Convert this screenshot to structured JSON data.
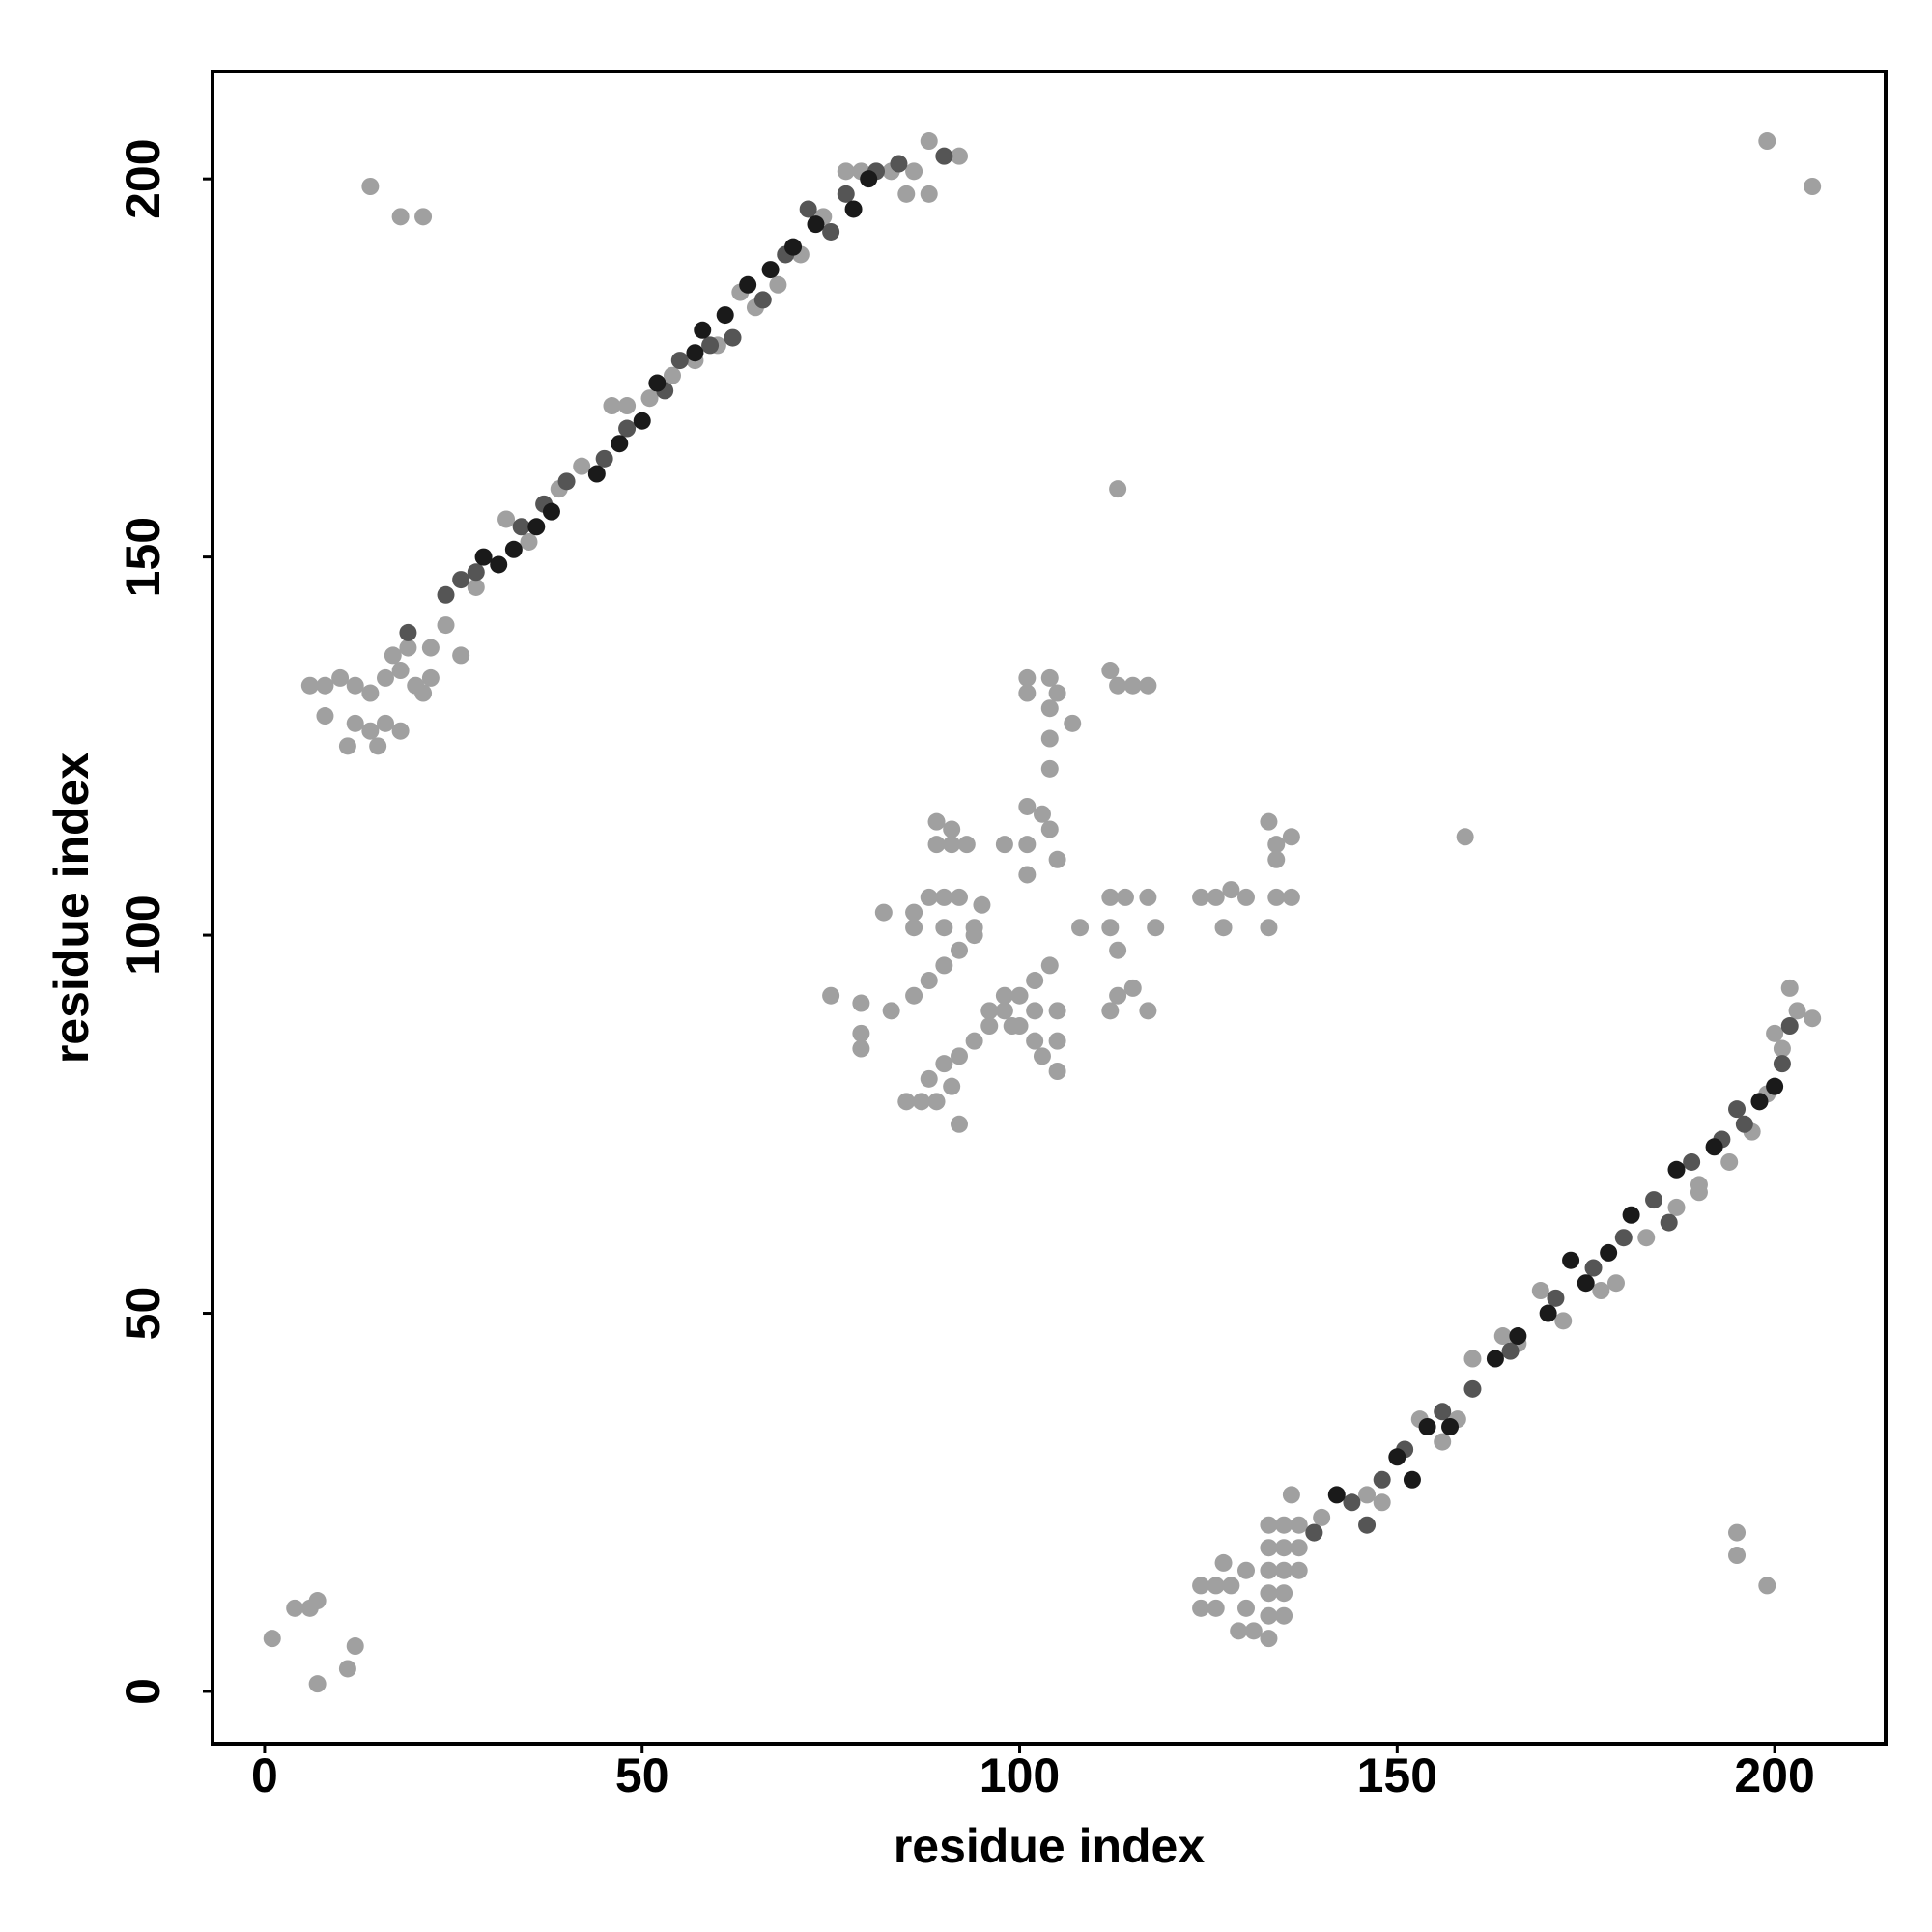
{
  "chart_data": {
    "type": "scatter",
    "x_label": "residue index",
    "y_label": "residue index",
    "xlim": [
      -6.9,
      214.7
    ],
    "ylim": [
      -6.9,
      214.2
    ],
    "xticks": [
      0,
      50,
      100,
      150,
      200
    ],
    "yticks": [
      0,
      50,
      100,
      150,
      200
    ],
    "series": [
      {
        "color": "#a0a0a0",
        "x": [
          6,
          8,
          10,
          12,
          14,
          16,
          18,
          20,
          22,
          8,
          12,
          14,
          16,
          11,
          15,
          18,
          21,
          17,
          19,
          22,
          26,
          24,
          28,
          32,
          35,
          39,
          42,
          46,
          48,
          51,
          54,
          57,
          60,
          63,
          65,
          68,
          71,
          74,
          77,
          79,
          83,
          86,
          88,
          92,
          85,
          88,
          14,
          18,
          21,
          113,
          199,
          205,
          159,
          195,
          195,
          199,
          1,
          4,
          6,
          7,
          12,
          11,
          7,
          75,
          79,
          79,
          79,
          83,
          86,
          88,
          90,
          92,
          94,
          82,
          86,
          88,
          90,
          92,
          95,
          86,
          90,
          94,
          89,
          91,
          93,
          89,
          91,
          85,
          87,
          89,
          91,
          92,
          88,
          90,
          92,
          94,
          96,
          98,
          100,
          102,
          100,
          102,
          102,
          103,
          104,
          105,
          105,
          105,
          99,
          98,
          96,
          101,
          101,
          104,
          104,
          104,
          104,
          103,
          104,
          101,
          101,
          101,
          107,
          105,
          105,
          98,
          108,
          112,
          113,
          115,
          117,
          112,
          114,
          117,
          118,
          112,
          113,
          113,
          112,
          115,
          117,
          124,
          126,
          128,
          130,
          127,
          133,
          134,
          136,
          133,
          134,
          136,
          134,
          133,
          135,
          137,
          133,
          135,
          137,
          133,
          135,
          137,
          133,
          135,
          133,
          135,
          133,
          129,
          131,
          124,
          126,
          128,
          124,
          126,
          130,
          127,
          130,
          139,
          136,
          140,
          146,
          148,
          153,
          156,
          158,
          160,
          164,
          166,
          169,
          172,
          177,
          179,
          183,
          187,
          190,
          194,
          197,
          199,
          201,
          203,
          205,
          202,
          200,
          190
        ],
        "values": [
          133,
          133,
          134,
          133,
          132,
          134,
          135,
          133,
          134,
          129,
          128,
          127,
          128,
          125,
          125,
          127,
          132,
          137,
          138,
          138,
          137,
          141,
          146,
          155,
          152,
          159,
          162,
          170,
          170,
          171,
          174,
          176,
          178,
          185,
          183,
          186,
          190,
          195,
          201,
          201,
          201,
          201,
          205,
          203,
          198,
          198,
          199,
          195,
          195,
          159,
          205,
          199,
          113,
          21,
          18,
          14,
          7,
          11,
          11,
          12,
          6,
          3,
          1,
          92,
          91,
          87,
          85,
          90,
          92,
          94,
          96,
          98,
          100,
          103,
          103,
          105,
          105,
          105,
          104,
          101,
          101,
          101,
          112,
          112,
          112,
          115,
          114,
          78,
          78,
          78,
          80,
          75,
          81,
          83,
          84,
          86,
          88,
          90,
          92,
          94,
          88,
          86,
          90,
          84,
          96,
          90,
          86,
          82,
          88,
          92,
          90,
          134,
          132,
          134,
          130,
          126,
          122,
          116,
          114,
          117,
          112,
          108,
          128,
          132,
          110,
          112,
          101,
          135,
          133,
          133,
          133,
          105,
          105,
          105,
          101,
          101,
          98,
          92,
          90,
          93,
          90,
          105,
          105,
          106,
          105,
          101,
          101,
          105,
          105,
          115,
          112,
          113,
          110,
          22,
          22,
          22,
          19,
          19,
          19,
          16,
          16,
          16,
          13,
          13,
          10,
          10,
          7,
          8,
          8,
          14,
          14,
          14,
          11,
          11,
          11,
          17,
          16,
          21,
          26,
          23,
          26,
          25,
          36,
          33,
          36,
          44,
          47,
          46,
          53,
          49,
          53,
          54,
          60,
          64,
          67,
          70,
          74,
          79,
          85,
          90,
          89,
          93,
          87,
          66
        ]
      },
      {
        "color": "#555555",
        "x": [
          19,
          24,
          26,
          28,
          34,
          37,
          40,
          45,
          48,
          53,
          55,
          59,
          62,
          66,
          69,
          72,
          75,
          77,
          81,
          84,
          90,
          139,
          144,
          146,
          148,
          151,
          156,
          160,
          165,
          171,
          176,
          180,
          184,
          186,
          189,
          193,
          195,
          196,
          201,
          202
        ],
        "values": [
          140,
          145,
          147,
          148,
          154,
          157,
          160,
          163,
          167,
          172,
          176,
          178,
          179,
          184,
          190,
          196,
          193,
          198,
          201,
          202,
          203,
          21,
          25,
          22,
          28,
          32,
          37,
          40,
          45,
          52,
          56,
          60,
          65,
          62,
          70,
          73,
          77,
          75,
          83,
          88
        ]
      },
      {
        "color": "#1a1a1a",
        "x": [
          29,
          31,
          33,
          36,
          38,
          44,
          47,
          50,
          52,
          57,
          58,
          61,
          64,
          67,
          70,
          73,
          78,
          80,
          142,
          150,
          152,
          154,
          157,
          163,
          166,
          170,
          173,
          175,
          178,
          181,
          187,
          192,
          198,
          200
        ],
        "values": [
          150,
          149,
          151,
          154,
          156,
          161,
          165,
          168,
          173,
          177,
          180,
          182,
          186,
          188,
          191,
          194,
          196,
          200,
          26,
          31,
          28,
          35,
          35,
          44,
          47,
          50,
          57,
          54,
          58,
          63,
          69,
          72,
          78,
          80
        ]
      }
    ]
  }
}
